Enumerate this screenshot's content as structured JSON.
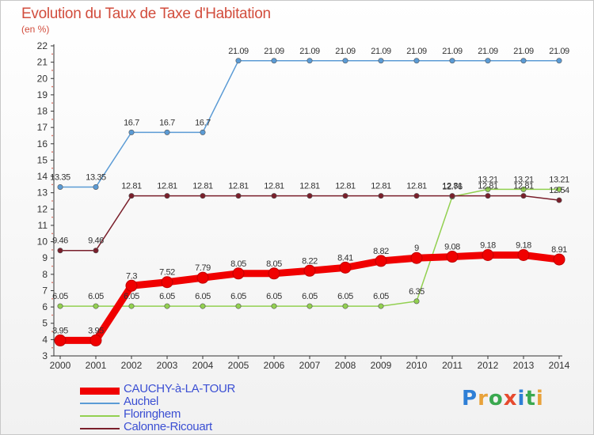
{
  "title": "Evolution du Taux de Taxe d'Habitation",
  "unit": "(en %)",
  "logo": {
    "text": "Proxiti",
    "colors": [
      "#2e7fd6",
      "#e8a23a",
      "#3aa84f",
      "#e64a2e",
      "#2e7fd6",
      "#3aa84f",
      "#e8a23a"
    ]
  },
  "chart_data": {
    "type": "line",
    "x": [
      "2000",
      "2001",
      "2002",
      "2003",
      "2004",
      "2005",
      "2006",
      "2007",
      "2008",
      "2009",
      "2010",
      "2011",
      "2012",
      "2013",
      "2014"
    ],
    "ylim": [
      3,
      22
    ],
    "yticks": [
      "3",
      "4",
      "5",
      "6",
      "7",
      "8",
      "9",
      "10",
      "11",
      "12",
      "13",
      "14",
      "15",
      "16",
      "17",
      "18",
      "19",
      "20",
      "21",
      "22"
    ],
    "grid": false,
    "legend_position": "bottom-left",
    "series": [
      {
        "name": "CAUCHY-à-LA-TOUR",
        "color": "#f00000",
        "values": [
          3.95,
          3.95,
          7.3,
          7.52,
          7.79,
          8.05,
          8.05,
          8.22,
          8.41,
          8.82,
          9,
          9.08,
          9.18,
          9.18,
          8.91
        ],
        "labels": [
          "3.95",
          "3.95",
          "7.3",
          "7.52",
          "7.79",
          "8.05",
          "8.05",
          "8.22",
          "8.41",
          "8.82",
          "9",
          "9.08",
          "9.18",
          "9.18",
          "8.91"
        ]
      },
      {
        "name": "Auchel",
        "color": "#5b9bd5",
        "values": [
          13.35,
          13.35,
          16.7,
          16.7,
          16.7,
          21.09,
          21.09,
          21.09,
          21.09,
          21.09,
          21.09,
          21.09,
          21.09,
          21.09,
          21.09
        ],
        "labels": [
          "13.35",
          "13.35",
          "16.7",
          "16.7",
          "16.7",
          "21.09",
          "21.09",
          "21.09",
          "21.09",
          "21.09",
          "21.09",
          "21.09",
          "21.09",
          "21.09",
          "21.09"
        ]
      },
      {
        "name": "Floringhem",
        "color": "#92d050",
        "values": [
          6.05,
          6.05,
          6.05,
          6.05,
          6.05,
          6.05,
          6.05,
          6.05,
          6.05,
          6.05,
          6.35,
          12.76,
          13.21,
          13.21,
          13.21
        ],
        "labels": [
          "6.05",
          "6.05",
          "6.05",
          "6.05",
          "6.05",
          "6.05",
          "6.05",
          "6.05",
          "6.05",
          "6.05",
          "6.35",
          "12.76",
          "13.21",
          "13.21",
          "13.21"
        ]
      },
      {
        "name": "Calonne-Ricouart",
        "color": "#7a1f2b",
        "values": [
          9.46,
          9.46,
          12.81,
          12.81,
          12.81,
          12.81,
          12.81,
          12.81,
          12.81,
          12.81,
          12.81,
          12.81,
          12.81,
          12.81,
          12.54
        ],
        "labels": [
          "9.46",
          "9.46",
          "12.81",
          "12.81",
          "12.81",
          "12.81",
          "12.81",
          "12.81",
          "12.81",
          "12.81",
          "12.81",
          "12.81",
          "12.81",
          "12.81",
          "12.54"
        ]
      }
    ]
  }
}
